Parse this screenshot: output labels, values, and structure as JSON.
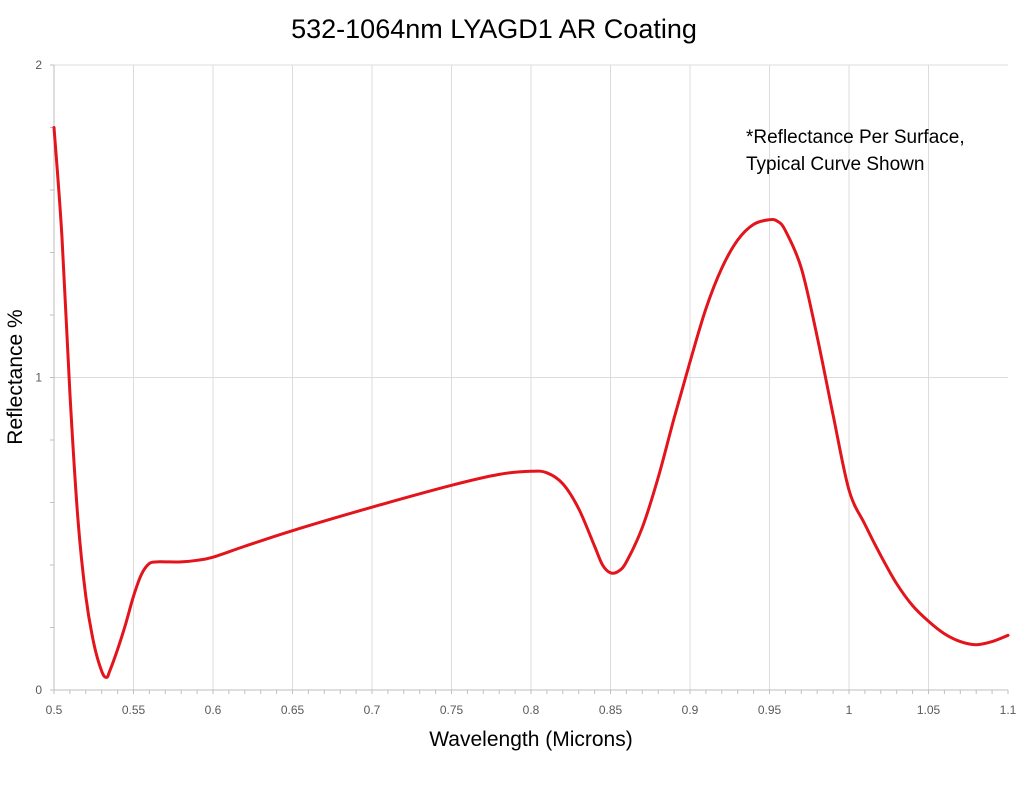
{
  "chart_data": {
    "type": "line",
    "title": "532-1064nm LYAGD1 AR Coating",
    "xlabel": "Wavelength (Microns)",
    "ylabel": "Reflectance %",
    "xlim": [
      0.5,
      1.1
    ],
    "ylim": [
      0,
      2
    ],
    "x_ticks": [
      "0.5",
      "0.55",
      "0.6",
      "0.65",
      "0.7",
      "0.75",
      "0.8",
      "0.85",
      "0.9",
      "0.95",
      "1",
      "1.05",
      "1.1"
    ],
    "y_ticks": [
      "0",
      "1",
      "2"
    ],
    "grid": true,
    "annotation": [
      "*Reflectance Per Surface,",
      "Typical Curve Shown"
    ],
    "series": [
      {
        "color": "#e3141b",
        "x": [
          0.5,
          0.505,
          0.51,
          0.515,
          0.52,
          0.525,
          0.53,
          0.533,
          0.535,
          0.54,
          0.545,
          0.55,
          0.555,
          0.56,
          0.565,
          0.57,
          0.58,
          0.59,
          0.6,
          0.62,
          0.65,
          0.7,
          0.75,
          0.78,
          0.8,
          0.81,
          0.82,
          0.83,
          0.84,
          0.845,
          0.85,
          0.855,
          0.86,
          0.87,
          0.88,
          0.89,
          0.9,
          0.91,
          0.92,
          0.93,
          0.94,
          0.95,
          0.955,
          0.96,
          0.97,
          0.98,
          0.99,
          1.0,
          1.01,
          1.02,
          1.03,
          1.04,
          1.05,
          1.06,
          1.07,
          1.08,
          1.09,
          1.1
        ],
        "y": [
          1.8,
          1.45,
          0.95,
          0.55,
          0.3,
          0.15,
          0.06,
          0.04,
          0.06,
          0.13,
          0.21,
          0.3,
          0.37,
          0.405,
          0.41,
          0.41,
          0.41,
          0.415,
          0.425,
          0.46,
          0.51,
          0.585,
          0.655,
          0.69,
          0.7,
          0.695,
          0.66,
          0.58,
          0.46,
          0.4,
          0.375,
          0.38,
          0.41,
          0.52,
          0.68,
          0.87,
          1.05,
          1.22,
          1.35,
          1.44,
          1.49,
          1.505,
          1.5,
          1.47,
          1.35,
          1.13,
          0.88,
          0.64,
          0.53,
          0.43,
          0.34,
          0.27,
          0.22,
          0.18,
          0.155,
          0.145,
          0.155,
          0.175
        ]
      }
    ]
  }
}
